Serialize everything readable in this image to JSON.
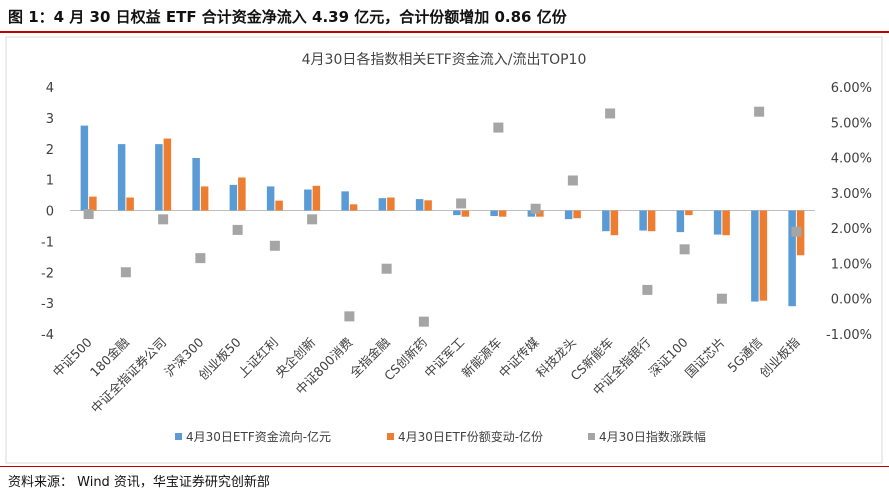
{
  "figure": {
    "caption": "图 1：4 月 30 日权益 ETF 合计资金净流入 4.39 亿元，合计份额增加 0.86 亿份",
    "source": "资料来源： Wind 资讯，华宝证券研究创新部"
  },
  "colors": {
    "rule": "#c00000",
    "flow": "#5b9bd5",
    "share": "#ed7d31",
    "change": "#a5a5a5"
  },
  "chart_data": {
    "type": "bar",
    "title": "4月30日各指数相关ETF资金流入/流出TOP10",
    "categories": [
      "中证500",
      "180金融",
      "中证全指证券公司",
      "沪深300",
      "创业板50",
      "上证红利",
      "央企创新",
      "中证800消费",
      "全指金融",
      "CS创新药",
      "中证军工",
      "新能源车",
      "中证传媒",
      "科技龙头",
      "CS新能车",
      "中证全指银行",
      "深证100",
      "国证芯片",
      "5G通信",
      "创业板指"
    ],
    "series": [
      {
        "name": "4月30日ETF资金流向-亿元",
        "axis": "left",
        "type": "bar",
        "values": [
          2.75,
          2.15,
          2.15,
          1.7,
          0.83,
          0.78,
          0.68,
          0.62,
          0.4,
          0.37,
          -0.15,
          -0.18,
          -0.2,
          -0.28,
          -0.67,
          -0.65,
          -0.7,
          -0.78,
          -2.95,
          -3.1
        ]
      },
      {
        "name": "4月30日ETF份额变动-亿份",
        "axis": "left",
        "type": "bar",
        "values": [
          0.45,
          0.42,
          2.33,
          0.78,
          1.07,
          0.32,
          0.8,
          0.2,
          0.42,
          0.33,
          -0.2,
          -0.2,
          -0.2,
          -0.25,
          -0.8,
          -0.67,
          -0.15,
          -0.8,
          -2.92,
          -1.45
        ]
      },
      {
        "name": "4月30日指数涨跌幅",
        "axis": "right",
        "type": "scatter",
        "values": [
          2.4,
          0.75,
          2.25,
          1.15,
          1.95,
          1.5,
          2.25,
          -0.5,
          0.85,
          -0.65,
          2.7,
          4.85,
          2.55,
          3.35,
          5.25,
          0.25,
          1.4,
          0.0,
          5.3,
          1.9
        ]
      }
    ],
    "y_left": {
      "min": -4,
      "max": 4,
      "ticks": [
        "4",
        "3",
        "2",
        "1",
        "0",
        "-1",
        "-2",
        "-3",
        "-4"
      ]
    },
    "y_right": {
      "min": -1,
      "max": 6,
      "ticks": [
        "6.00%",
        "5.00%",
        "4.00%",
        "3.00%",
        "2.00%",
        "1.00%",
        "0.00%",
        "-1.00%"
      ]
    },
    "grid": false,
    "legend_position": "bottom"
  }
}
